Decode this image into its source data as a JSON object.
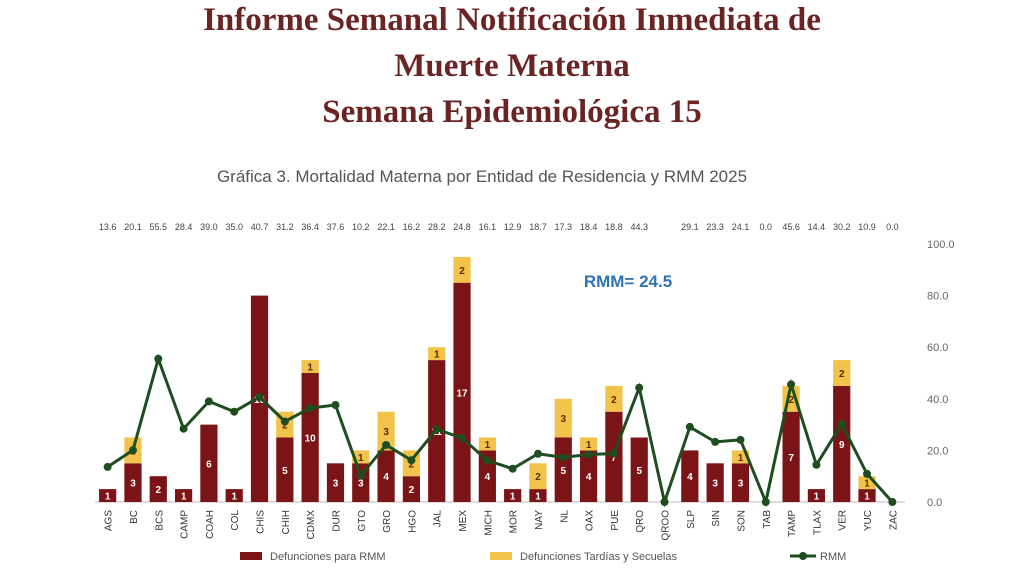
{
  "chart_data": {
    "type": "bar",
    "title": [
      "Informe Semanal  Notificación Inmediata de",
      "Muerte Materna",
      "Semana Epidemiológica 15"
    ],
    "subtitle": "Gráfica 3. Mortalidad Materna por Entidad de Residencia y RMM 2025",
    "annotation": "RMM=  24.5",
    "categories": [
      "AGS",
      "BC",
      "BCS",
      "CAMP",
      "COAH",
      "COL",
      "CHIS",
      "CHIH",
      "CDMX",
      "DUR",
      "GTO",
      "GRO",
      "HGO",
      "JAL",
      "MEX",
      "MICH",
      "MOR",
      "NAY",
      "NL",
      "OAX",
      "PUE",
      "QRO",
      "QROO",
      "SLP",
      "SIN",
      "SON",
      "TAB",
      "TAMP",
      "TLAX",
      "VER",
      "YUC",
      "ZAC"
    ],
    "series": [
      {
        "name": "Defunciones para RMM",
        "color": "#7b1416",
        "values": [
          1,
          3,
          2,
          1,
          6,
          1,
          16,
          5,
          10,
          3,
          3,
          4,
          2,
          11,
          17,
          4,
          1,
          1,
          5,
          4,
          7,
          5,
          0,
          4,
          3,
          3,
          0,
          7,
          1,
          9,
          1,
          0
        ]
      },
      {
        "name": "Defunciones Tardías y Secuelas",
        "color": "#f2c34a",
        "values": [
          0,
          2,
          0,
          0,
          0,
          0,
          0,
          2,
          1,
          0,
          1,
          3,
          2,
          1,
          2,
          1,
          0,
          2,
          3,
          1,
          2,
          0,
          0,
          0,
          0,
          1,
          0,
          2,
          0,
          2,
          1,
          0
        ]
      },
      {
        "name": "RMM",
        "color": "#1f4d1f",
        "type": "line",
        "axis": "y2",
        "values": [
          13.6,
          20.1,
          55.5,
          28.4,
          39.0,
          35.0,
          40.7,
          31.2,
          36.4,
          37.6,
          10.2,
          22.1,
          16.2,
          28.2,
          24.8,
          16.1,
          12.9,
          18.7,
          17.3,
          18.4,
          18.8,
          44.3,
          0,
          29.1,
          23.3,
          24.1,
          0,
          45.6,
          14.4,
          30.2,
          10.9,
          0
        ],
        "value_labels": [
          "13.6",
          "20.1",
          "55.5",
          "28.4",
          "39.0",
          "35.0",
          "40.7",
          "31.2",
          "36.4",
          "37.6",
          "10.2",
          "22.1",
          "16.2",
          "28.2",
          "24.8",
          "16.1",
          "12.9",
          "18.7",
          "17.3",
          "18.4",
          "18.8",
          "44.3",
          null,
          "29.1",
          "23.3",
          "24.1",
          "0.0",
          "45.6",
          "14.4",
          "30.2",
          "10.9",
          "0.0"
        ]
      }
    ],
    "ylim": [
      0,
      20
    ],
    "y2lim": [
      0,
      100
    ],
    "y2ticks": [
      {
        "value": 0,
        "label": "0.0"
      },
      {
        "value": 20,
        "label": "20.0"
      },
      {
        "value": 40,
        "label": "40.0"
      },
      {
        "value": 60,
        "label": "60.0"
      },
      {
        "value": 80,
        "label": "80.0"
      },
      {
        "value": 100,
        "label": "100.0"
      }
    ],
    "legend": "bottom"
  }
}
